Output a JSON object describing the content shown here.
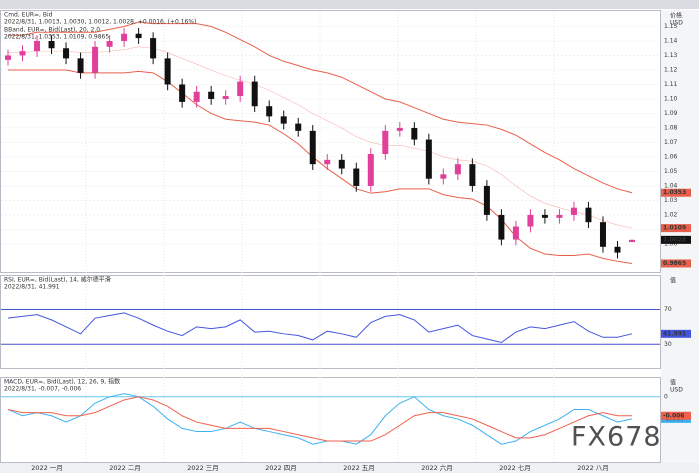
{
  "chart_data": [
    {
      "type": "candlestick",
      "title": "Cmd, EUR=, Bid",
      "subtitle": "2022/8/31, 1.0013, 1.0030, 1.0012, 1.0028, +0.0016, (+0.16%)",
      "axis_labels": [
        "价格",
        "USD"
      ],
      "ylim": [
        0.982,
        1.16
      ],
      "yticks": [
        {
          "value": 1.0,
          "label": "1.00"
        },
        {
          "value": 1.01,
          "label": "1.01"
        },
        {
          "value": 1.02,
          "label": "1.02"
        },
        {
          "value": 1.03,
          "label": "1.03"
        },
        {
          "value": 1.04,
          "label": "1.04"
        },
        {
          "value": 1.05,
          "label": "1.05"
        },
        {
          "value": 1.06,
          "label": "1.06"
        },
        {
          "value": 1.07,
          "label": "1.07"
        },
        {
          "value": 1.08,
          "label": "1.08"
        },
        {
          "value": 1.09,
          "label": "1.09"
        },
        {
          "value": 1.1,
          "label": "1.10"
        },
        {
          "value": 1.11,
          "label": "1.11"
        },
        {
          "value": 1.12,
          "label": "1.12"
        },
        {
          "value": 1.13,
          "label": "1.13"
        },
        {
          "value": 1.14,
          "label": "1.14"
        },
        {
          "value": 1.15,
          "label": "1.15"
        }
      ],
      "up_color": "#e0409a",
      "down_color": "#111111",
      "open": [
        1.127,
        1.13,
        1.133,
        1.14,
        1.135,
        1.128,
        1.118,
        1.136,
        1.14,
        1.145,
        1.142,
        1.128,
        1.11,
        1.098,
        1.105,
        1.1,
        1.102,
        1.112,
        1.095,
        1.088,
        1.083,
        1.078,
        1.055,
        1.058,
        1.052,
        1.04,
        1.062,
        1.078,
        1.08,
        1.072,
        1.045,
        1.048,
        1.055,
        1.04,
        1.02,
        1.003,
        1.012,
        1.02,
        1.018,
        1.02,
        1.025,
        1.015,
        0.998,
        1.0013
      ],
      "high": [
        1.134,
        1.137,
        1.144,
        1.144,
        1.139,
        1.132,
        1.14,
        1.144,
        1.149,
        1.149,
        1.146,
        1.132,
        1.114,
        1.109,
        1.109,
        1.106,
        1.116,
        1.116,
        1.099,
        1.092,
        1.087,
        1.082,
        1.062,
        1.062,
        1.056,
        1.066,
        1.082,
        1.084,
        1.084,
        1.076,
        1.052,
        1.059,
        1.059,
        1.044,
        1.024,
        1.016,
        1.024,
        1.024,
        1.024,
        1.029,
        1.029,
        1.019,
        1.002,
        1.003
      ],
      "low": [
        1.123,
        1.126,
        1.129,
        1.131,
        1.124,
        1.114,
        1.114,
        1.132,
        1.136,
        1.138,
        1.124,
        1.106,
        1.094,
        1.094,
        1.096,
        1.096,
        1.098,
        1.091,
        1.084,
        1.079,
        1.074,
        1.051,
        1.051,
        1.048,
        1.036,
        1.036,
        1.058,
        1.074,
        1.068,
        1.041,
        1.041,
        1.044,
        1.036,
        1.016,
        0.999,
        0.999,
        1.008,
        1.014,
        1.014,
        1.016,
        1.011,
        0.994,
        0.99,
        1.0012
      ],
      "close": [
        1.13,
        1.133,
        1.14,
        1.135,
        1.128,
        1.118,
        1.136,
        1.14,
        1.145,
        1.142,
        1.128,
        1.11,
        1.098,
        1.105,
        1.1,
        1.102,
        1.112,
        1.095,
        1.088,
        1.083,
        1.078,
        1.055,
        1.058,
        1.052,
        1.04,
        1.062,
        1.078,
        1.08,
        1.072,
        1.045,
        1.048,
        1.055,
        1.04,
        1.02,
        1.003,
        1.012,
        1.02,
        1.018,
        1.02,
        1.025,
        1.015,
        0.998,
        0.994,
        1.0028
      ],
      "overlay": {
        "title": "BBand, EUR=, Bid(Last), 20, 2.0",
        "subtitle": "2022/8/31, 1.0353, 1.0109, 0.9865",
        "color": "#e8604c",
        "upper": [
          1.144,
          1.144,
          1.146,
          1.146,
          1.146,
          1.146,
          1.146,
          1.148,
          1.15,
          1.153,
          1.152,
          1.152,
          1.152,
          1.152,
          1.15,
          1.146,
          1.141,
          1.136,
          1.13,
          1.126,
          1.123,
          1.12,
          1.118,
          1.115,
          1.11,
          1.105,
          1.1,
          1.098,
          1.094,
          1.09,
          1.086,
          1.084,
          1.083,
          1.082,
          1.079,
          1.075,
          1.069,
          1.063,
          1.058,
          1.052,
          1.047,
          1.042,
          1.038,
          1.0353
        ],
        "middle": [
          1.132,
          1.132,
          1.133,
          1.133,
          1.133,
          1.132,
          1.132,
          1.133,
          1.134,
          1.136,
          1.135,
          1.132,
          1.128,
          1.124,
          1.12,
          1.116,
          1.113,
          1.11,
          1.106,
          1.101,
          1.096,
          1.09,
          1.085,
          1.08,
          1.074,
          1.07,
          1.068,
          1.068,
          1.066,
          1.064,
          1.06,
          1.058,
          1.057,
          1.054,
          1.048,
          1.04,
          1.033,
          1.028,
          1.025,
          1.022,
          1.02,
          1.016,
          1.013,
          1.0109
        ],
        "lower": [
          1.12,
          1.12,
          1.12,
          1.12,
          1.12,
          1.118,
          1.118,
          1.118,
          1.118,
          1.119,
          1.118,
          1.112,
          1.104,
          1.096,
          1.09,
          1.086,
          1.085,
          1.084,
          1.082,
          1.076,
          1.069,
          1.06,
          1.052,
          1.045,
          1.038,
          1.035,
          1.036,
          1.038,
          1.038,
          1.038,
          1.034,
          1.032,
          1.031,
          1.026,
          1.017,
          1.005,
          0.997,
          0.993,
          0.992,
          0.992,
          0.993,
          0.99,
          0.988,
          0.9865
        ]
      }
    },
    {
      "type": "line",
      "title": "RSI, EUR=, Bid(Last), 14, 威尔德平滑",
      "subtitle": "2022/8/31, 41.991",
      "axis_labels": [
        "值"
      ],
      "ylim": [
        5,
        105
      ],
      "yticks": [
        30,
        70
      ],
      "tick_color": "#4455cc",
      "color": "#4455dd",
      "values": [
        60,
        62,
        64,
        58,
        50,
        42,
        60,
        63,
        66,
        60,
        52,
        45,
        40,
        50,
        48,
        50,
        58,
        44,
        45,
        42,
        40,
        35,
        45,
        42,
        38,
        55,
        62,
        64,
        58,
        44,
        48,
        52,
        40,
        36,
        32,
        44,
        50,
        48,
        52,
        56,
        45,
        38,
        38,
        41.991
      ]
    },
    {
      "type": "line",
      "title": "MACD, EUR=, Bid(Last), 12, 26, 9, 指数",
      "subtitle": "2022/8/31, -0.007, -0.006",
      "axis_labels": [
        "值",
        "USD"
      ],
      "ylim": [
        -0.02,
        0.005
      ],
      "yticks": [
        0
      ],
      "tick_color": "#66c8f0",
      "series": [
        {
          "color": "#3db2f0",
          "values": [
            -0.004,
            -0.006,
            -0.005,
            -0.006,
            -0.008,
            -0.006,
            -0.002,
            0.0,
            0.001,
            0.0,
            -0.003,
            -0.007,
            -0.01,
            -0.011,
            -0.011,
            -0.01,
            -0.008,
            -0.01,
            -0.011,
            -0.012,
            -0.013,
            -0.015,
            -0.014,
            -0.014,
            -0.015,
            -0.012,
            -0.006,
            -0.002,
            0.0,
            -0.004,
            -0.006,
            -0.007,
            -0.009,
            -0.012,
            -0.015,
            -0.014,
            -0.011,
            -0.009,
            -0.007,
            -0.004,
            -0.004,
            -0.006,
            -0.008,
            -0.007
          ]
        },
        {
          "color": "#f0604c",
          "values": [
            -0.004,
            -0.005,
            -0.005,
            -0.005,
            -0.006,
            -0.006,
            -0.005,
            -0.003,
            -0.001,
            0.0,
            -0.001,
            -0.003,
            -0.006,
            -0.008,
            -0.009,
            -0.01,
            -0.01,
            -0.01,
            -0.01,
            -0.011,
            -0.012,
            -0.013,
            -0.014,
            -0.014,
            -0.014,
            -0.014,
            -0.012,
            -0.009,
            -0.006,
            -0.005,
            -0.005,
            -0.006,
            -0.007,
            -0.009,
            -0.011,
            -0.013,
            -0.013,
            -0.012,
            -0.01,
            -0.008,
            -0.006,
            -0.005,
            -0.006,
            -0.006
          ]
        }
      ]
    }
  ],
  "x_axis": {
    "labels": [
      "2022 一月",
      "2022 二月",
      "2022 三月",
      "2022 四月",
      "2022 五月",
      "2022 六月",
      "2022 七月",
      "2022 八月"
    ]
  },
  "watermark": "FX678"
}
